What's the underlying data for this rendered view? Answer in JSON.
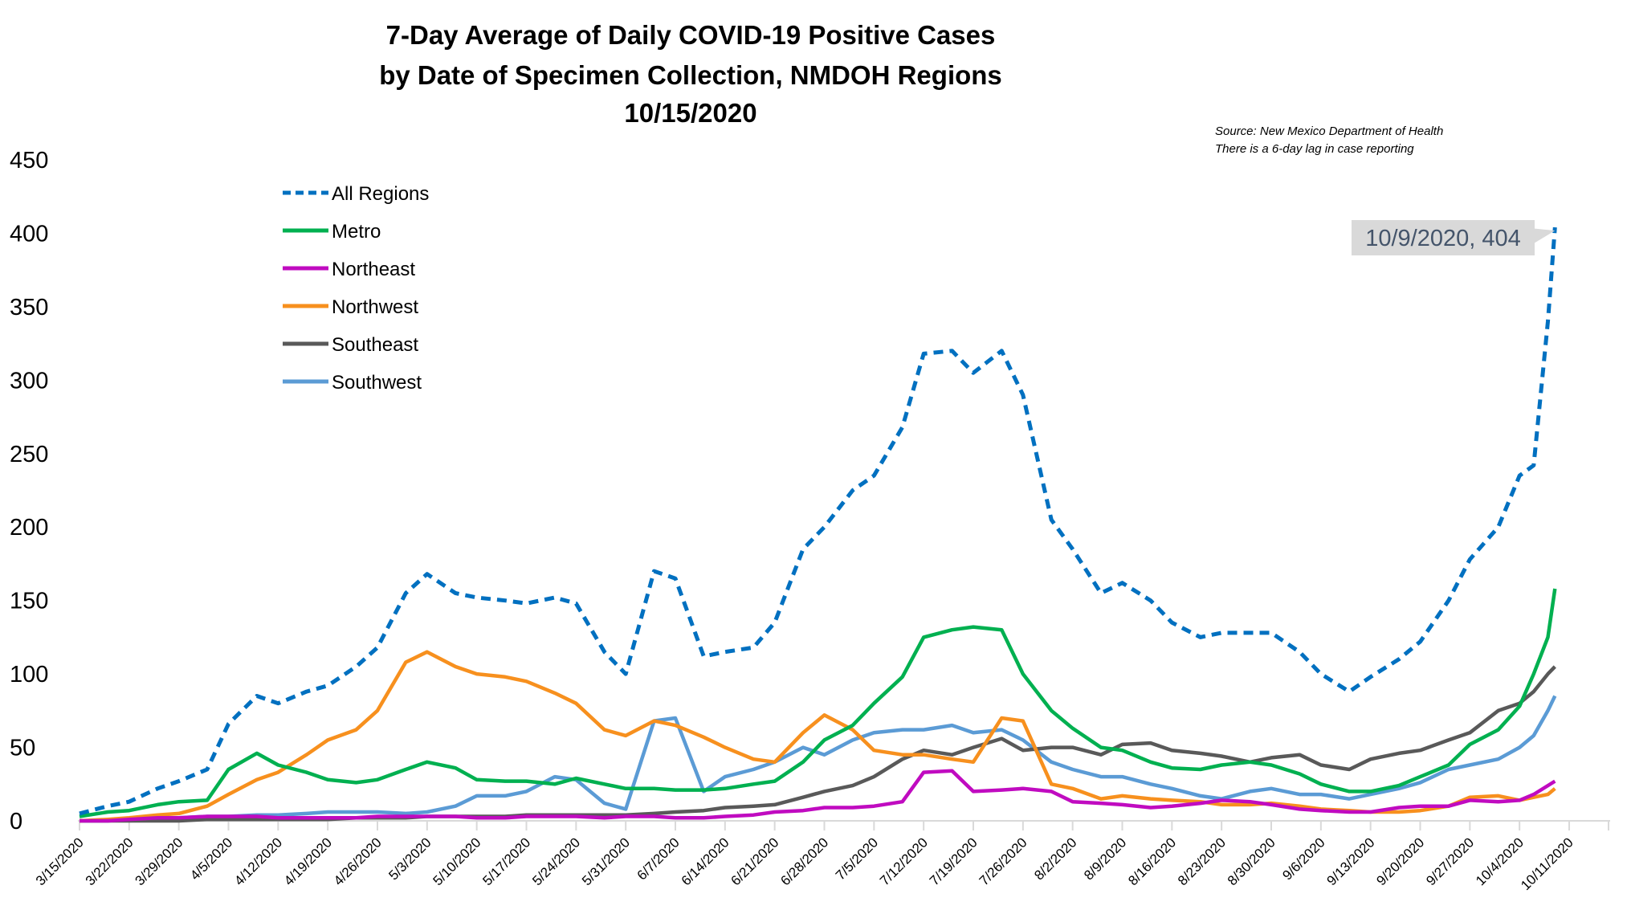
{
  "chart_data": {
    "type": "line",
    "title": [
      "7-Day Average of Daily COVID-19 Positive Cases",
      "by Date of Specimen Collection, NMDOH Regions",
      "10/15/2020"
    ],
    "xlabel": "",
    "ylabel": "",
    "ylim": [
      0,
      450
    ],
    "yticks": [
      "0",
      "50",
      "100",
      "150",
      "200",
      "250",
      "300",
      "350",
      "400",
      "450"
    ],
    "xlim": [
      "3/15/2020",
      "10/11/2020"
    ],
    "xticks": [
      "3/15/2020",
      "3/22/2020",
      "3/29/2020",
      "4/5/2020",
      "4/12/2020",
      "4/19/2020",
      "4/26/2020",
      "5/3/2020",
      "5/10/2020",
      "5/17/2020",
      "5/24/2020",
      "5/31/2020",
      "6/7/2020",
      "6/14/2020",
      "6/21/2020",
      "6/28/2020",
      "7/5/2020",
      "7/12/2020",
      "7/19/2020",
      "7/26/2020",
      "8/2/2020",
      "8/9/2020",
      "8/16/2020",
      "8/23/2020",
      "8/30/2020",
      "9/6/2020",
      "9/13/2020",
      "9/20/2020",
      "9/27/2020",
      "10/4/2020",
      "10/11/2020"
    ],
    "grid": false,
    "legend_position": "top-left",
    "x": [
      "3/15/2020",
      "3/19/2020",
      "3/22/2020",
      "3/26/2020",
      "3/29/2020",
      "4/2/2020",
      "4/5/2020",
      "4/9/2020",
      "4/12/2020",
      "4/16/2020",
      "4/19/2020",
      "4/23/2020",
      "4/26/2020",
      "4/30/2020",
      "5/3/2020",
      "5/7/2020",
      "5/10/2020",
      "5/14/2020",
      "5/17/2020",
      "5/21/2020",
      "5/24/2020",
      "5/28/2020",
      "5/31/2020",
      "6/4/2020",
      "6/7/2020",
      "6/11/2020",
      "6/14/2020",
      "6/18/2020",
      "6/21/2020",
      "6/25/2020",
      "6/28/2020",
      "7/2/2020",
      "7/5/2020",
      "7/9/2020",
      "7/12/2020",
      "7/16/2020",
      "7/19/2020",
      "7/23/2020",
      "7/26/2020",
      "7/30/2020",
      "8/2/2020",
      "8/6/2020",
      "8/9/2020",
      "8/13/2020",
      "8/16/2020",
      "8/20/2020",
      "8/23/2020",
      "8/27/2020",
      "8/30/2020",
      "9/3/2020",
      "9/6/2020",
      "9/10/2020",
      "9/13/2020",
      "9/17/2020",
      "9/20/2020",
      "9/24/2020",
      "9/27/2020",
      "10/1/2020",
      "10/4/2020",
      "10/6/2020",
      "10/8/2020",
      "10/9/2020"
    ],
    "series": [
      {
        "name": "All Regions",
        "color": "#0070c0",
        "dashed": true,
        "values": [
          5,
          10,
          13,
          22,
          27,
          35,
          66,
          85,
          80,
          88,
          92,
          105,
          118,
          155,
          168,
          155,
          152,
          150,
          148,
          152,
          148,
          115,
          100,
          170,
          165,
          112,
          115,
          118,
          135,
          185,
          200,
          225,
          235,
          268,
          318,
          320,
          305,
          320,
          290,
          205,
          185,
          155,
          162,
          150,
          135,
          125,
          128,
          128,
          128,
          115,
          100,
          88,
          98,
          110,
          122,
          150,
          178,
          200,
          235,
          242,
          340,
          404
        ]
      },
      {
        "name": "Metro",
        "color": "#00b050",
        "dashed": false,
        "values": [
          3,
          6,
          7,
          11,
          13,
          14,
          35,
          46,
          38,
          33,
          28,
          26,
          28,
          35,
          40,
          36,
          28,
          27,
          27,
          25,
          29,
          25,
          22,
          22,
          21,
          21,
          22,
          25,
          27,
          40,
          55,
          65,
          80,
          98,
          125,
          130,
          132,
          130,
          100,
          75,
          63,
          50,
          48,
          40,
          36,
          35,
          38,
          40,
          38,
          32,
          25,
          20,
          20,
          24,
          30,
          38,
          52,
          62,
          78,
          100,
          125,
          158
        ]
      },
      {
        "name": "Northeast",
        "color": "#c00bc0",
        "dashed": false,
        "values": [
          0,
          0,
          1,
          2,
          2,
          3,
          3,
          3,
          2,
          2,
          2,
          2,
          3,
          3,
          3,
          3,
          2,
          2,
          3,
          3,
          3,
          2,
          3,
          3,
          2,
          2,
          3,
          4,
          6,
          7,
          9,
          9,
          10,
          13,
          33,
          34,
          20,
          21,
          22,
          20,
          13,
          12,
          11,
          9,
          10,
          12,
          14,
          13,
          11,
          8,
          7,
          6,
          6,
          9,
          10,
          10,
          14,
          13,
          14,
          18,
          24,
          27
        ]
      },
      {
        "name": "Northwest",
        "color": "#f7901e",
        "dashed": false,
        "values": [
          0,
          1,
          2,
          4,
          5,
          10,
          18,
          28,
          33,
          45,
          55,
          62,
          75,
          108,
          115,
          105,
          100,
          98,
          95,
          87,
          80,
          62,
          58,
          68,
          65,
          57,
          50,
          42,
          40,
          60,
          72,
          62,
          48,
          45,
          45,
          42,
          40,
          70,
          68,
          25,
          22,
          15,
          17,
          15,
          14,
          13,
          11,
          11,
          12,
          10,
          8,
          7,
          6,
          6,
          7,
          10,
          16,
          17,
          14,
          16,
          18,
          22
        ]
      },
      {
        "name": "Southeast",
        "color": "#595959",
        "dashed": false,
        "values": [
          0,
          0,
          0,
          0,
          0,
          1,
          1,
          1,
          1,
          1,
          1,
          2,
          2,
          2,
          3,
          3,
          3,
          3,
          4,
          4,
          4,
          4,
          4,
          5,
          6,
          7,
          9,
          10,
          11,
          16,
          20,
          24,
          30,
          42,
          48,
          45,
          50,
          56,
          48,
          50,
          50,
          45,
          52,
          53,
          48,
          46,
          44,
          40,
          43,
          45,
          38,
          35,
          42,
          46,
          48,
          55,
          60,
          75,
          80,
          88,
          100,
          105
        ]
      },
      {
        "name": "Southwest",
        "color": "#5b9bd5",
        "dashed": false,
        "values": [
          0,
          0,
          1,
          2,
          2,
          3,
          3,
          4,
          4,
          5,
          6,
          6,
          6,
          5,
          6,
          10,
          17,
          17,
          20,
          30,
          28,
          12,
          8,
          68,
          70,
          20,
          30,
          35,
          40,
          50,
          45,
          55,
          60,
          62,
          62,
          65,
          60,
          62,
          55,
          40,
          35,
          30,
          30,
          25,
          22,
          17,
          15,
          20,
          22,
          18,
          18,
          15,
          18,
          22,
          26,
          35,
          38,
          42,
          50,
          58,
          75,
          85
        ]
      }
    ],
    "annotations": {
      "source": "Source: New Mexico Department of Health",
      "lag_note": "There is a 6-day lag in case reporting",
      "callout": "10/9/2020, 404",
      "callout_point": {
        "x": "10/9/2020",
        "y": 404,
        "series": "All Regions"
      }
    },
    "colors": {
      "axis": "#d9d9d9",
      "callout_bg": "#d9d9d9",
      "callout_text": "#44546a"
    }
  }
}
